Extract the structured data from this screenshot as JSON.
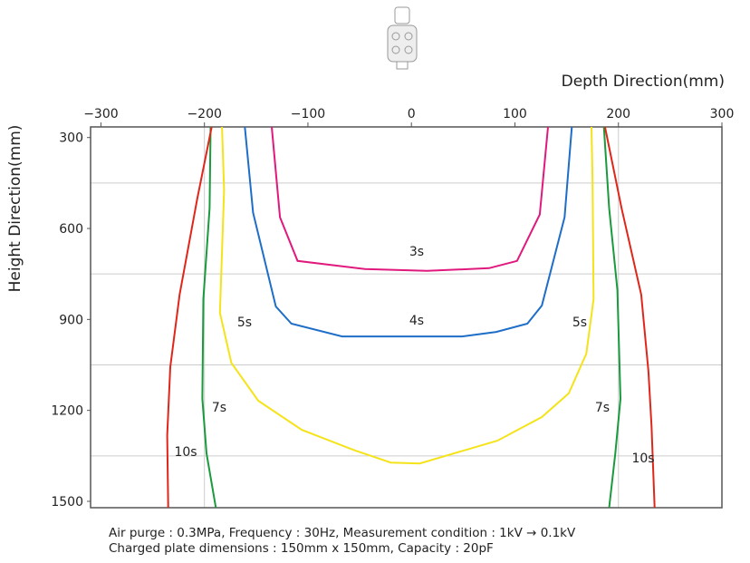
{
  "chart_data": {
    "type": "line",
    "x_label": "Depth Direction(mm)",
    "y_label": "Height Direction(mm)",
    "xlim": [
      -310,
      300
    ],
    "ylim": [
      265,
      1521
    ],
    "y_inverted": true,
    "xticks": [
      {
        "value": -300,
        "label": "−300"
      },
      {
        "value": -200,
        "label": "−200"
      },
      {
        "value": -100,
        "label": "−100"
      },
      0,
      100,
      200,
      300
    ],
    "yticks": [
      300,
      600,
      900,
      1200,
      1500
    ],
    "xgrid": [
      -200,
      200
    ],
    "ygrid": [
      450,
      750,
      1050,
      1350
    ],
    "series": [
      {
        "color": "#e0197d",
        "x": [
          -135,
          -127,
          -110,
          -45,
          15,
          75,
          102,
          124,
          132
        ],
        "y": [
          265,
          563,
          707,
          734,
          740,
          731,
          707,
          554,
          265
        ]
      },
      {
        "color": "#1e6ec8",
        "x": [
          -161,
          -153,
          -131,
          -116,
          -67,
          49,
          82,
          112,
          126,
          148,
          155
        ],
        "y": [
          265,
          548,
          857,
          914,
          956,
          956,
          941,
          914,
          854,
          563,
          265
        ]
      },
      {
        "color": "#f5e31a",
        "x": [
          -183,
          -181,
          -185,
          -174,
          -148,
          -106,
          -54,
          -20,
          8,
          83,
          126,
          152,
          169,
          176,
          175,
          174
        ],
        "y": [
          265,
          474,
          878,
          1043,
          1168,
          1264,
          1333,
          1372,
          1375,
          1300,
          1222,
          1144,
          1013,
          833,
          444,
          265
        ]
      },
      {
        "color": "#1a9a3c",
        "x": [
          -194,
          -195,
          -201,
          -202,
          -198,
          -189,
          null,
          186,
          191,
          199,
          202,
          197,
          191
        ],
        "y": [
          265,
          533,
          833,
          1162,
          1342,
          1521,
          null,
          265,
          533,
          803,
          1162,
          1342,
          1521
        ]
      },
      {
        "color": "#e0261a",
        "x": [
          -193,
          -207,
          -224,
          -233,
          -236,
          -235,
          null,
          187,
          203,
          222,
          229,
          232,
          235
        ],
        "y": [
          265,
          503,
          818,
          1057,
          1282,
          1521,
          null,
          265,
          533,
          818,
          1072,
          1252,
          1521
        ]
      }
    ],
    "annotations": [
      "3s",
      "4s",
      "5s",
      "5s",
      "7s",
      "7s",
      "10s",
      "10s"
    ],
    "notes": [
      "Air purge : 0.3MPa, Frequency : 30Hz, Measurement condition : 1kV → 0.1kV",
      "Charged plate dimensions : 150mm x 150mm, Capacity : 20pF"
    ]
  }
}
